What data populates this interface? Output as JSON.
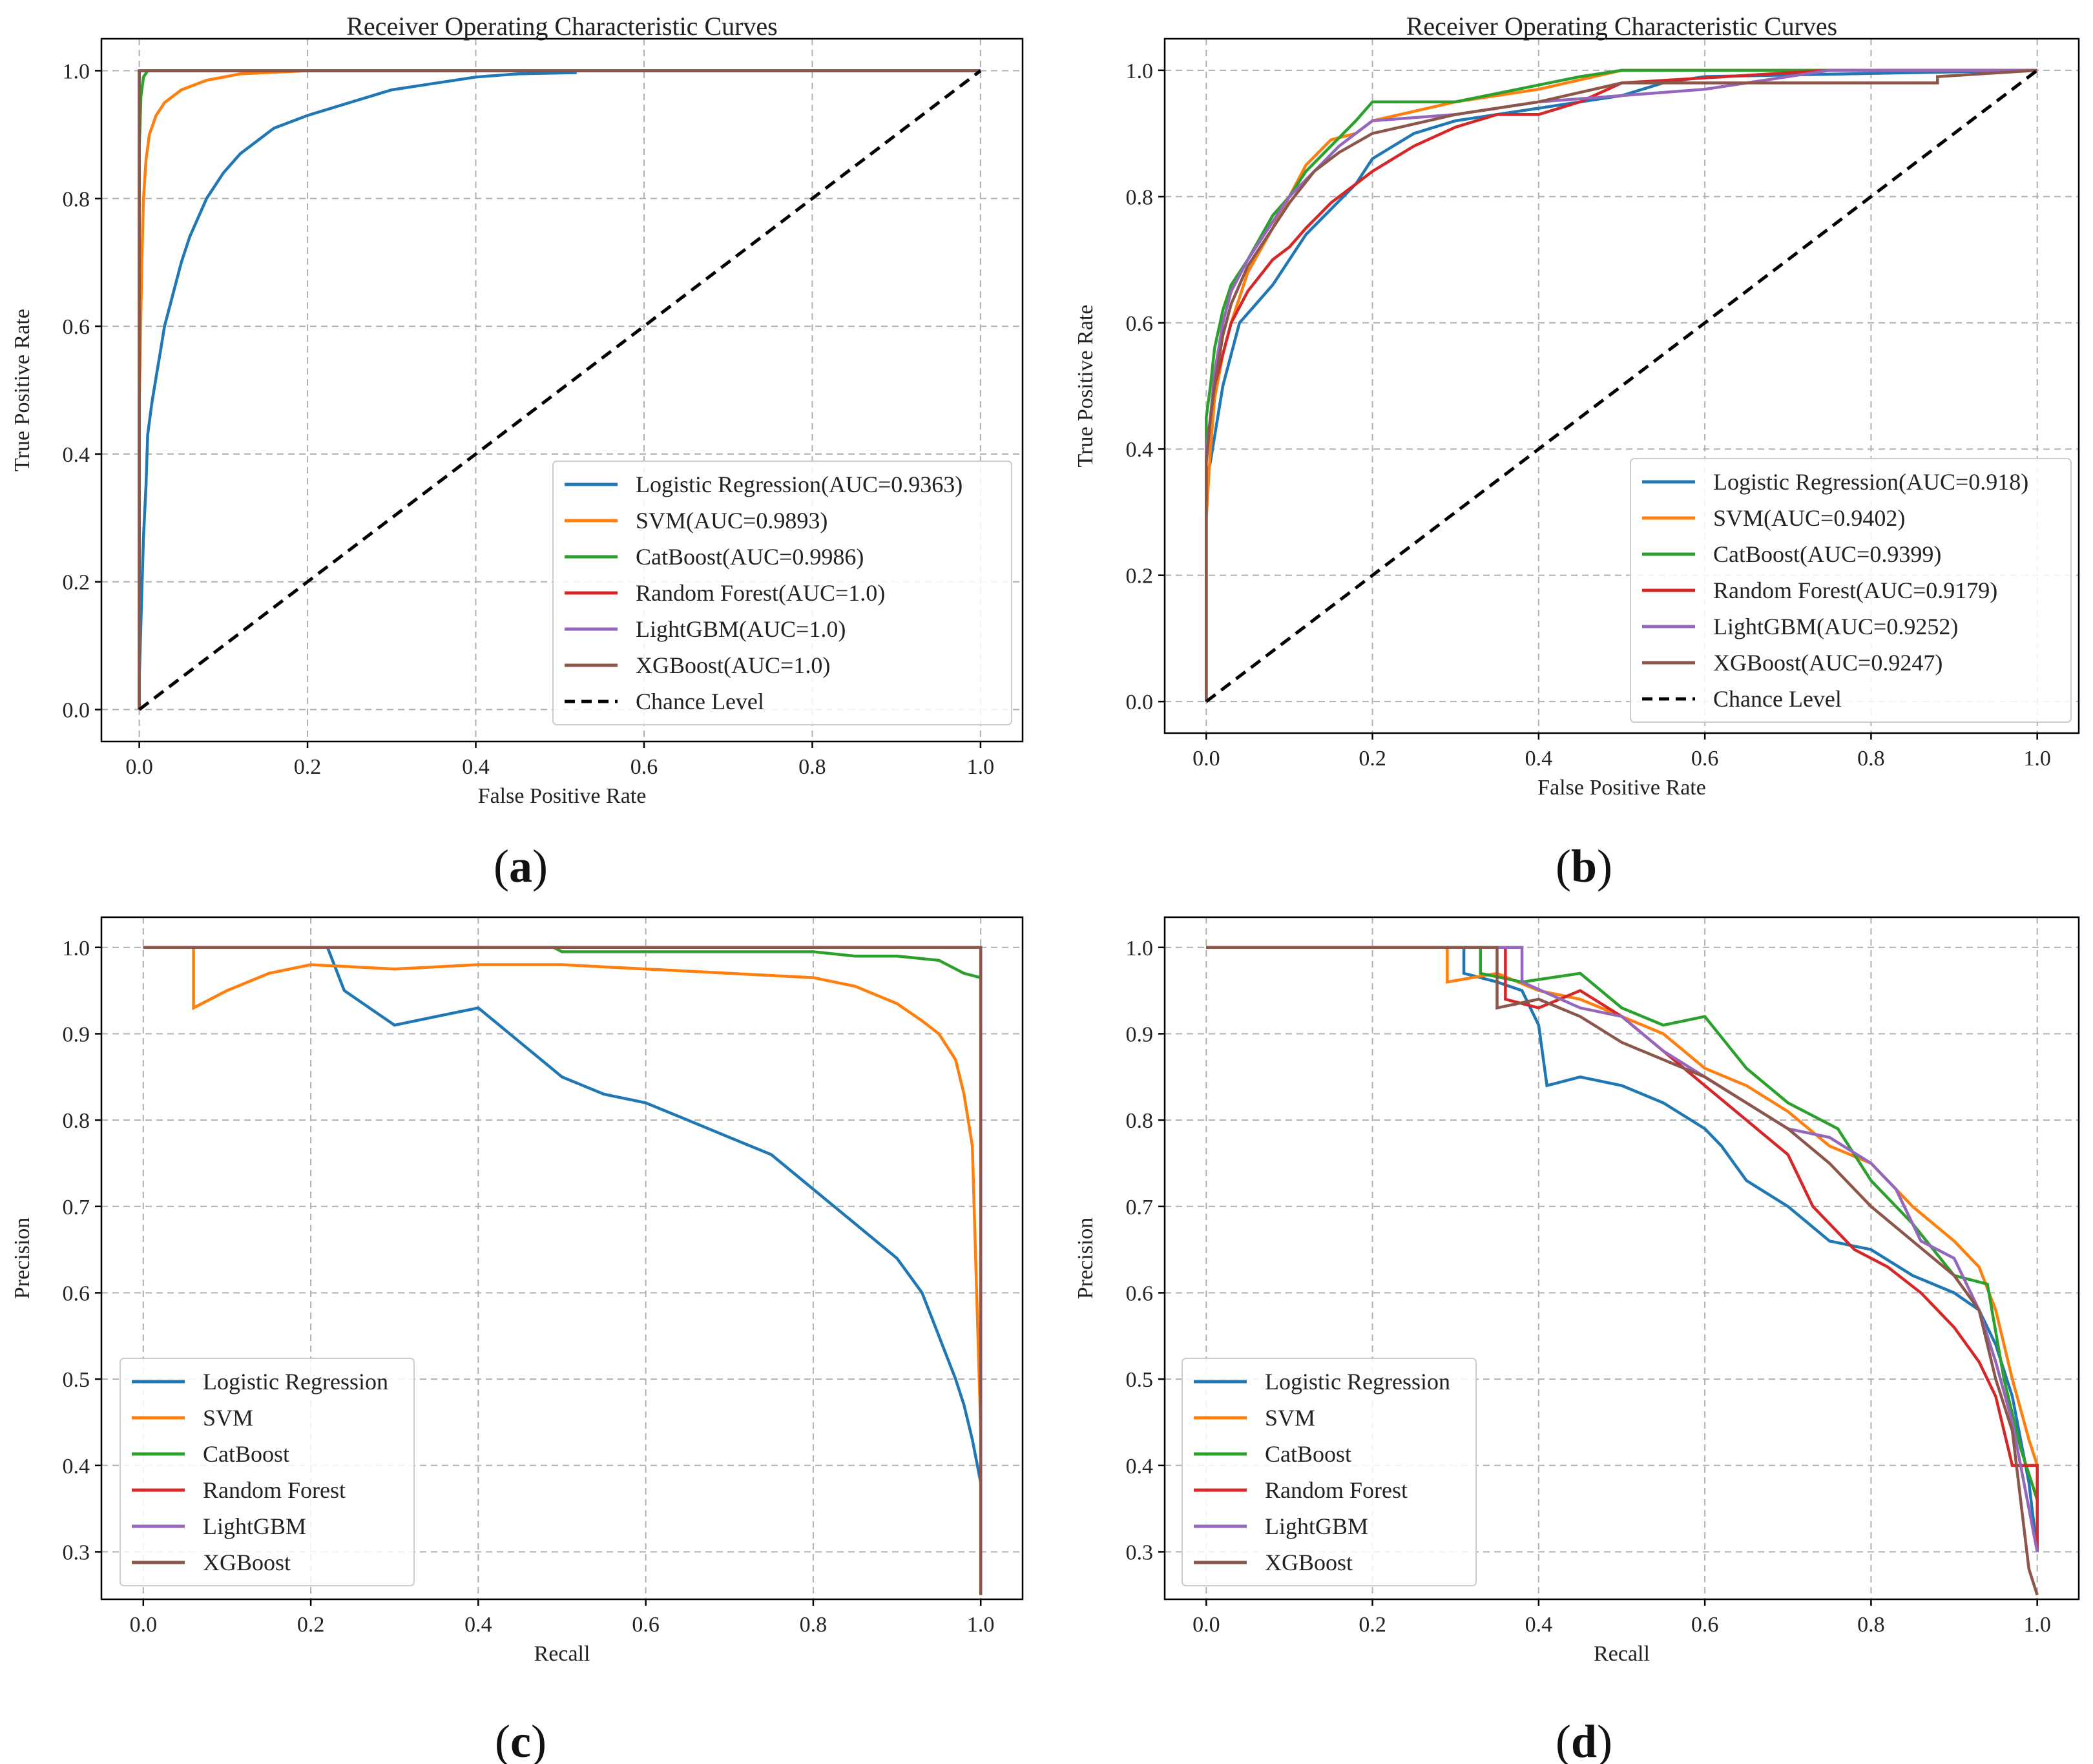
{
  "figure": {
    "captions": [
      "(a)",
      "(b)",
      "(c)",
      "(d)"
    ]
  },
  "colors": {
    "Logistic Regression": "#1f77b4",
    "SVM": "#ff7f0e",
    "CatBoost": "#2ca02c",
    "Random Forest": "#d62728",
    "LightGBM": "#9467bd",
    "XGBoost": "#8c564b",
    "Chance Level": "#000000"
  },
  "chart_data": [
    {
      "id": "a",
      "type": "line",
      "title": "Receiver Operating Characteristic Curves",
      "xlabel": "False Positive Rate",
      "ylabel": "True Positive Rate",
      "xlim": [
        -0.045,
        1.05
      ],
      "ylim": [
        -0.05,
        1.05
      ],
      "xticks": [
        "0.0",
        "0.2",
        "0.4",
        "0.6",
        "0.8",
        "1.0"
      ],
      "yticks": [
        "0.0",
        "0.2",
        "0.4",
        "0.6",
        "0.8",
        "1.0"
      ],
      "grid": true,
      "legend_position": "lower-right",
      "series": [
        {
          "name": "Logistic Regression",
          "label": "Logistic Regression(AUC=0.9363)",
          "x": [
            0,
            0,
            0.005,
            0.008,
            0.01,
            0.015,
            0.02,
            0.025,
            0.03,
            0.04,
            0.05,
            0.06,
            0.07,
            0.08,
            0.09,
            0.1,
            0.12,
            0.14,
            0.16,
            0.18,
            0.2,
            0.25,
            0.3,
            0.35,
            0.4,
            0.45,
            0.52
          ],
          "y": [
            0,
            0.05,
            0.27,
            0.35,
            0.43,
            0.48,
            0.52,
            0.56,
            0.6,
            0.65,
            0.7,
            0.74,
            0.77,
            0.8,
            0.82,
            0.84,
            0.87,
            0.89,
            0.91,
            0.92,
            0.93,
            0.95,
            0.97,
            0.98,
            0.99,
            0.995,
            0.997
          ]
        },
        {
          "name": "SVM",
          "label": "SVM(AUC=0.9893)",
          "x": [
            0,
            0,
            0.003,
            0.005,
            0.008,
            0.012,
            0.02,
            0.03,
            0.05,
            0.08,
            0.12,
            0.2,
            0.3,
            1.0
          ],
          "y": [
            0,
            0.48,
            0.7,
            0.8,
            0.86,
            0.9,
            0.93,
            0.95,
            0.97,
            0.985,
            0.995,
            1.0,
            1.0,
            1.0
          ]
        },
        {
          "name": "CatBoost",
          "label": "CatBoost(AUC=0.9986)",
          "x": [
            0,
            0,
            0.002,
            0.005,
            0.01,
            0.03,
            1.0
          ],
          "y": [
            0,
            0.88,
            0.96,
            0.99,
            1.0,
            1.0,
            1.0
          ]
        },
        {
          "name": "Random Forest",
          "label": "Random Forest(AUC=1.0)",
          "x": [
            0,
            0,
            1.0
          ],
          "y": [
            0,
            1.0,
            1.0
          ]
        },
        {
          "name": "LightGBM",
          "label": "LightGBM(AUC=1.0)",
          "x": [
            0,
            0,
            1.0
          ],
          "y": [
            0,
            1.0,
            1.0
          ]
        },
        {
          "name": "XGBoost",
          "label": "XGBoost(AUC=1.0)",
          "x": [
            0,
            0,
            1.0
          ],
          "y": [
            0,
            1.0,
            1.0
          ]
        },
        {
          "name": "Chance Level",
          "label": "Chance Level",
          "dashed": true,
          "x": [
            0,
            1
          ],
          "y": [
            0,
            1
          ]
        }
      ]
    },
    {
      "id": "b",
      "type": "line",
      "title": "Receiver Operating Characteristic Curves",
      "xlabel": "False Positive Rate",
      "ylabel": "True Positive Rate",
      "xlim": [
        -0.05,
        1.05
      ],
      "ylim": [
        -0.05,
        1.05
      ],
      "xticks": [
        "0.0",
        "0.2",
        "0.4",
        "0.6",
        "0.8",
        "1.0"
      ],
      "yticks": [
        "0.0",
        "0.2",
        "0.4",
        "0.6",
        "0.8",
        "1.0"
      ],
      "grid": true,
      "legend_position": "lower-right",
      "series": [
        {
          "name": "Logistic Regression",
          "label": "Logistic Regression(AUC=0.918)",
          "x": [
            0,
            0,
            0.005,
            0.01,
            0.02,
            0.03,
            0.04,
            0.06,
            0.08,
            0.1,
            0.12,
            0.15,
            0.18,
            0.2,
            0.25,
            0.3,
            0.4,
            0.5,
            0.55,
            0.6,
            1.0
          ],
          "y": [
            0,
            0.35,
            0.38,
            0.42,
            0.5,
            0.55,
            0.6,
            0.63,
            0.66,
            0.7,
            0.74,
            0.78,
            0.82,
            0.86,
            0.9,
            0.92,
            0.94,
            0.96,
            0.98,
            0.99,
            1.0
          ]
        },
        {
          "name": "SVM",
          "label": "SVM(AUC=0.9402)",
          "x": [
            0,
            0,
            0.005,
            0.01,
            0.02,
            0.03,
            0.05,
            0.08,
            0.1,
            0.12,
            0.15,
            0.18,
            0.2,
            0.3,
            0.4,
            0.5,
            1.0
          ],
          "y": [
            0,
            0.29,
            0.4,
            0.48,
            0.55,
            0.6,
            0.68,
            0.75,
            0.8,
            0.85,
            0.89,
            0.9,
            0.92,
            0.95,
            0.97,
            1.0,
            1.0
          ]
        },
        {
          "name": "CatBoost",
          "label": "CatBoost(AUC=0.9399)",
          "x": [
            0,
            0,
            0.005,
            0.01,
            0.02,
            0.03,
            0.05,
            0.08,
            0.1,
            0.12,
            0.15,
            0.18,
            0.2,
            0.3,
            0.45,
            0.5,
            1.0
          ],
          "y": [
            0,
            0.45,
            0.5,
            0.56,
            0.62,
            0.66,
            0.7,
            0.77,
            0.8,
            0.84,
            0.88,
            0.92,
            0.95,
            0.95,
            0.99,
            1.0,
            1.0
          ]
        },
        {
          "name": "Random Forest",
          "label": "Random Forest(AUC=0.9179)",
          "x": [
            0,
            0,
            0.005,
            0.01,
            0.02,
            0.03,
            0.05,
            0.08,
            0.1,
            0.12,
            0.15,
            0.18,
            0.2,
            0.25,
            0.3,
            0.35,
            0.4,
            0.45,
            0.5,
            0.75,
            1.0
          ],
          "y": [
            0,
            0.38,
            0.45,
            0.5,
            0.55,
            0.6,
            0.65,
            0.7,
            0.72,
            0.75,
            0.79,
            0.82,
            0.84,
            0.88,
            0.91,
            0.93,
            0.93,
            0.95,
            0.98,
            1.0,
            1.0
          ]
        },
        {
          "name": "LightGBM",
          "label": "LightGBM(AUC=0.9252)",
          "x": [
            0,
            0,
            0.005,
            0.01,
            0.02,
            0.03,
            0.05,
            0.08,
            0.1,
            0.13,
            0.16,
            0.2,
            0.3,
            0.4,
            0.5,
            0.6,
            0.75,
            0.88,
            0.88,
            1.0
          ],
          "y": [
            0,
            0.4,
            0.45,
            0.52,
            0.6,
            0.65,
            0.7,
            0.76,
            0.8,
            0.84,
            0.88,
            0.92,
            0.93,
            0.95,
            0.96,
            0.97,
            1.0,
            1.0,
            1.0,
            1.0
          ]
        },
        {
          "name": "XGBoost",
          "label": "XGBoost(AUC=0.9247)",
          "x": [
            0,
            0,
            0.005,
            0.01,
            0.02,
            0.03,
            0.05,
            0.08,
            0.1,
            0.13,
            0.16,
            0.2,
            0.3,
            0.4,
            0.5,
            0.88,
            0.88,
            1.0
          ],
          "y": [
            0,
            0.38,
            0.45,
            0.5,
            0.58,
            0.63,
            0.69,
            0.75,
            0.79,
            0.84,
            0.87,
            0.9,
            0.93,
            0.95,
            0.98,
            0.98,
            0.99,
            1.0
          ]
        },
        {
          "name": "Chance Level",
          "label": "Chance Level",
          "dashed": true,
          "x": [
            0,
            1
          ],
          "y": [
            0,
            1
          ]
        }
      ]
    },
    {
      "id": "c",
      "type": "line",
      "title": "",
      "xlabel": "Recall",
      "ylabel": "Precision",
      "xlim": [
        -0.05,
        1.05
      ],
      "ylim": [
        0.245,
        1.035
      ],
      "xticks": [
        "0.0",
        "0.2",
        "0.4",
        "0.6",
        "0.8",
        "1.0"
      ],
      "yticks": [
        "0.3",
        "0.4",
        "0.5",
        "0.6",
        "0.7",
        "0.8",
        "0.9",
        "1.0"
      ],
      "grid": true,
      "legend_position": "lower-left",
      "series": [
        {
          "name": "Logistic Regression",
          "label": "Logistic Regression",
          "x": [
            0,
            0.22,
            0.24,
            0.3,
            0.35,
            0.4,
            0.45,
            0.5,
            0.55,
            0.6,
            0.65,
            0.7,
            0.75,
            0.8,
            0.85,
            0.9,
            0.93,
            0.95,
            0.97,
            0.98,
            0.99,
            1.0
          ],
          "y": [
            1.0,
            1.0,
            0.95,
            0.91,
            0.92,
            0.93,
            0.89,
            0.85,
            0.83,
            0.82,
            0.8,
            0.78,
            0.76,
            0.72,
            0.68,
            0.64,
            0.6,
            0.55,
            0.5,
            0.47,
            0.43,
            0.38
          ]
        },
        {
          "name": "SVM",
          "label": "SVM",
          "x": [
            0,
            0.06,
            0.06,
            0.1,
            0.15,
            0.2,
            0.3,
            0.4,
            0.5,
            0.6,
            0.7,
            0.8,
            0.85,
            0.9,
            0.93,
            0.95,
            0.97,
            0.98,
            0.99,
            1.0
          ],
          "y": [
            1.0,
            1.0,
            0.93,
            0.95,
            0.97,
            0.98,
            0.975,
            0.98,
            0.98,
            0.975,
            0.97,
            0.965,
            0.955,
            0.935,
            0.915,
            0.9,
            0.87,
            0.83,
            0.77,
            0.44
          ]
        },
        {
          "name": "CatBoost",
          "label": "CatBoost",
          "x": [
            0,
            0.49,
            0.5,
            0.6,
            0.7,
            0.8,
            0.85,
            0.9,
            0.95,
            0.98,
            1.0,
            1.0
          ],
          "y": [
            1.0,
            1.0,
            0.995,
            0.995,
            0.995,
            0.995,
            0.99,
            0.99,
            0.985,
            0.97,
            0.965,
            0.91
          ]
        },
        {
          "name": "Random Forest",
          "label": "Random Forest",
          "x": [
            0,
            1.0,
            1.0
          ],
          "y": [
            1.0,
            1.0,
            0.25
          ]
        },
        {
          "name": "LightGBM",
          "label": "LightGBM",
          "x": [
            0,
            1.0,
            1.0
          ],
          "y": [
            1.0,
            1.0,
            0.25
          ]
        },
        {
          "name": "XGBoost",
          "label": "XGBoost",
          "x": [
            0,
            1.0,
            1.0
          ],
          "y": [
            1.0,
            1.0,
            0.25
          ]
        }
      ]
    },
    {
      "id": "d",
      "type": "line",
      "title": "",
      "xlabel": "Recall",
      "ylabel": "Precision",
      "xlim": [
        -0.05,
        1.05
      ],
      "ylim": [
        0.245,
        1.035
      ],
      "xticks": [
        "0.0",
        "0.2",
        "0.4",
        "0.6",
        "0.8",
        "1.0"
      ],
      "yticks": [
        "0.3",
        "0.4",
        "0.5",
        "0.6",
        "0.7",
        "0.8",
        "0.9",
        "1.0"
      ],
      "grid": true,
      "legend_position": "lower-left",
      "series": [
        {
          "name": "Logistic Regression",
          "label": "Logistic Regression",
          "x": [
            0,
            0.31,
            0.31,
            0.35,
            0.38,
            0.4,
            0.41,
            0.45,
            0.5,
            0.55,
            0.6,
            0.62,
            0.65,
            0.7,
            0.75,
            0.8,
            0.85,
            0.9,
            0.93,
            0.95,
            0.97,
            0.99,
            1.0
          ],
          "y": [
            1.0,
            1.0,
            0.97,
            0.96,
            0.95,
            0.91,
            0.84,
            0.85,
            0.84,
            0.82,
            0.79,
            0.77,
            0.73,
            0.7,
            0.66,
            0.65,
            0.62,
            0.6,
            0.58,
            0.54,
            0.48,
            0.38,
            0.3
          ]
        },
        {
          "name": "SVM",
          "label": "SVM",
          "x": [
            0,
            0.29,
            0.29,
            0.35,
            0.4,
            0.45,
            0.5,
            0.55,
            0.6,
            0.65,
            0.7,
            0.75,
            0.8,
            0.85,
            0.9,
            0.93,
            0.95,
            0.97,
            0.99,
            1.0
          ],
          "y": [
            1.0,
            1.0,
            0.96,
            0.97,
            0.95,
            0.94,
            0.92,
            0.9,
            0.86,
            0.84,
            0.81,
            0.77,
            0.75,
            0.7,
            0.66,
            0.63,
            0.58,
            0.5,
            0.43,
            0.4
          ]
        },
        {
          "name": "CatBoost",
          "label": "CatBoost",
          "x": [
            0,
            0.33,
            0.33,
            0.38,
            0.45,
            0.5,
            0.55,
            0.6,
            0.65,
            0.7,
            0.76,
            0.8,
            0.85,
            0.9,
            0.94,
            0.96,
            0.98,
            1.0
          ],
          "y": [
            1.0,
            1.0,
            0.97,
            0.96,
            0.97,
            0.93,
            0.91,
            0.92,
            0.86,
            0.82,
            0.79,
            0.73,
            0.68,
            0.62,
            0.61,
            0.5,
            0.42,
            0.36
          ]
        },
        {
          "name": "Random Forest",
          "label": "Random Forest",
          "x": [
            0,
            0.36,
            0.36,
            0.4,
            0.45,
            0.5,
            0.55,
            0.6,
            0.65,
            0.7,
            0.73,
            0.78,
            0.82,
            0.86,
            0.9,
            0.93,
            0.95,
            0.97,
            1.0,
            1.0
          ],
          "y": [
            1.0,
            1.0,
            0.94,
            0.93,
            0.95,
            0.92,
            0.88,
            0.84,
            0.8,
            0.76,
            0.7,
            0.65,
            0.63,
            0.6,
            0.56,
            0.52,
            0.48,
            0.4,
            0.4,
            0.3
          ]
        },
        {
          "name": "LightGBM",
          "label": "LightGBM",
          "x": [
            0,
            0.38,
            0.38,
            0.45,
            0.5,
            0.55,
            0.6,
            0.65,
            0.7,
            0.75,
            0.8,
            0.83,
            0.86,
            0.9,
            0.93,
            0.95,
            0.97,
            0.99,
            1.0
          ],
          "y": [
            1.0,
            1.0,
            0.96,
            0.93,
            0.92,
            0.88,
            0.85,
            0.82,
            0.79,
            0.78,
            0.75,
            0.72,
            0.66,
            0.64,
            0.58,
            0.52,
            0.45,
            0.35,
            0.3
          ]
        },
        {
          "name": "XGBoost",
          "label": "XGBoost",
          "x": [
            0,
            0.35,
            0.35,
            0.4,
            0.45,
            0.5,
            0.55,
            0.6,
            0.65,
            0.7,
            0.75,
            0.8,
            0.85,
            0.9,
            0.93,
            0.95,
            0.97,
            0.99,
            1.0
          ],
          "y": [
            1.0,
            1.0,
            0.93,
            0.94,
            0.92,
            0.89,
            0.87,
            0.85,
            0.82,
            0.79,
            0.75,
            0.7,
            0.66,
            0.62,
            0.58,
            0.5,
            0.44,
            0.28,
            0.25
          ]
        }
      ]
    }
  ]
}
